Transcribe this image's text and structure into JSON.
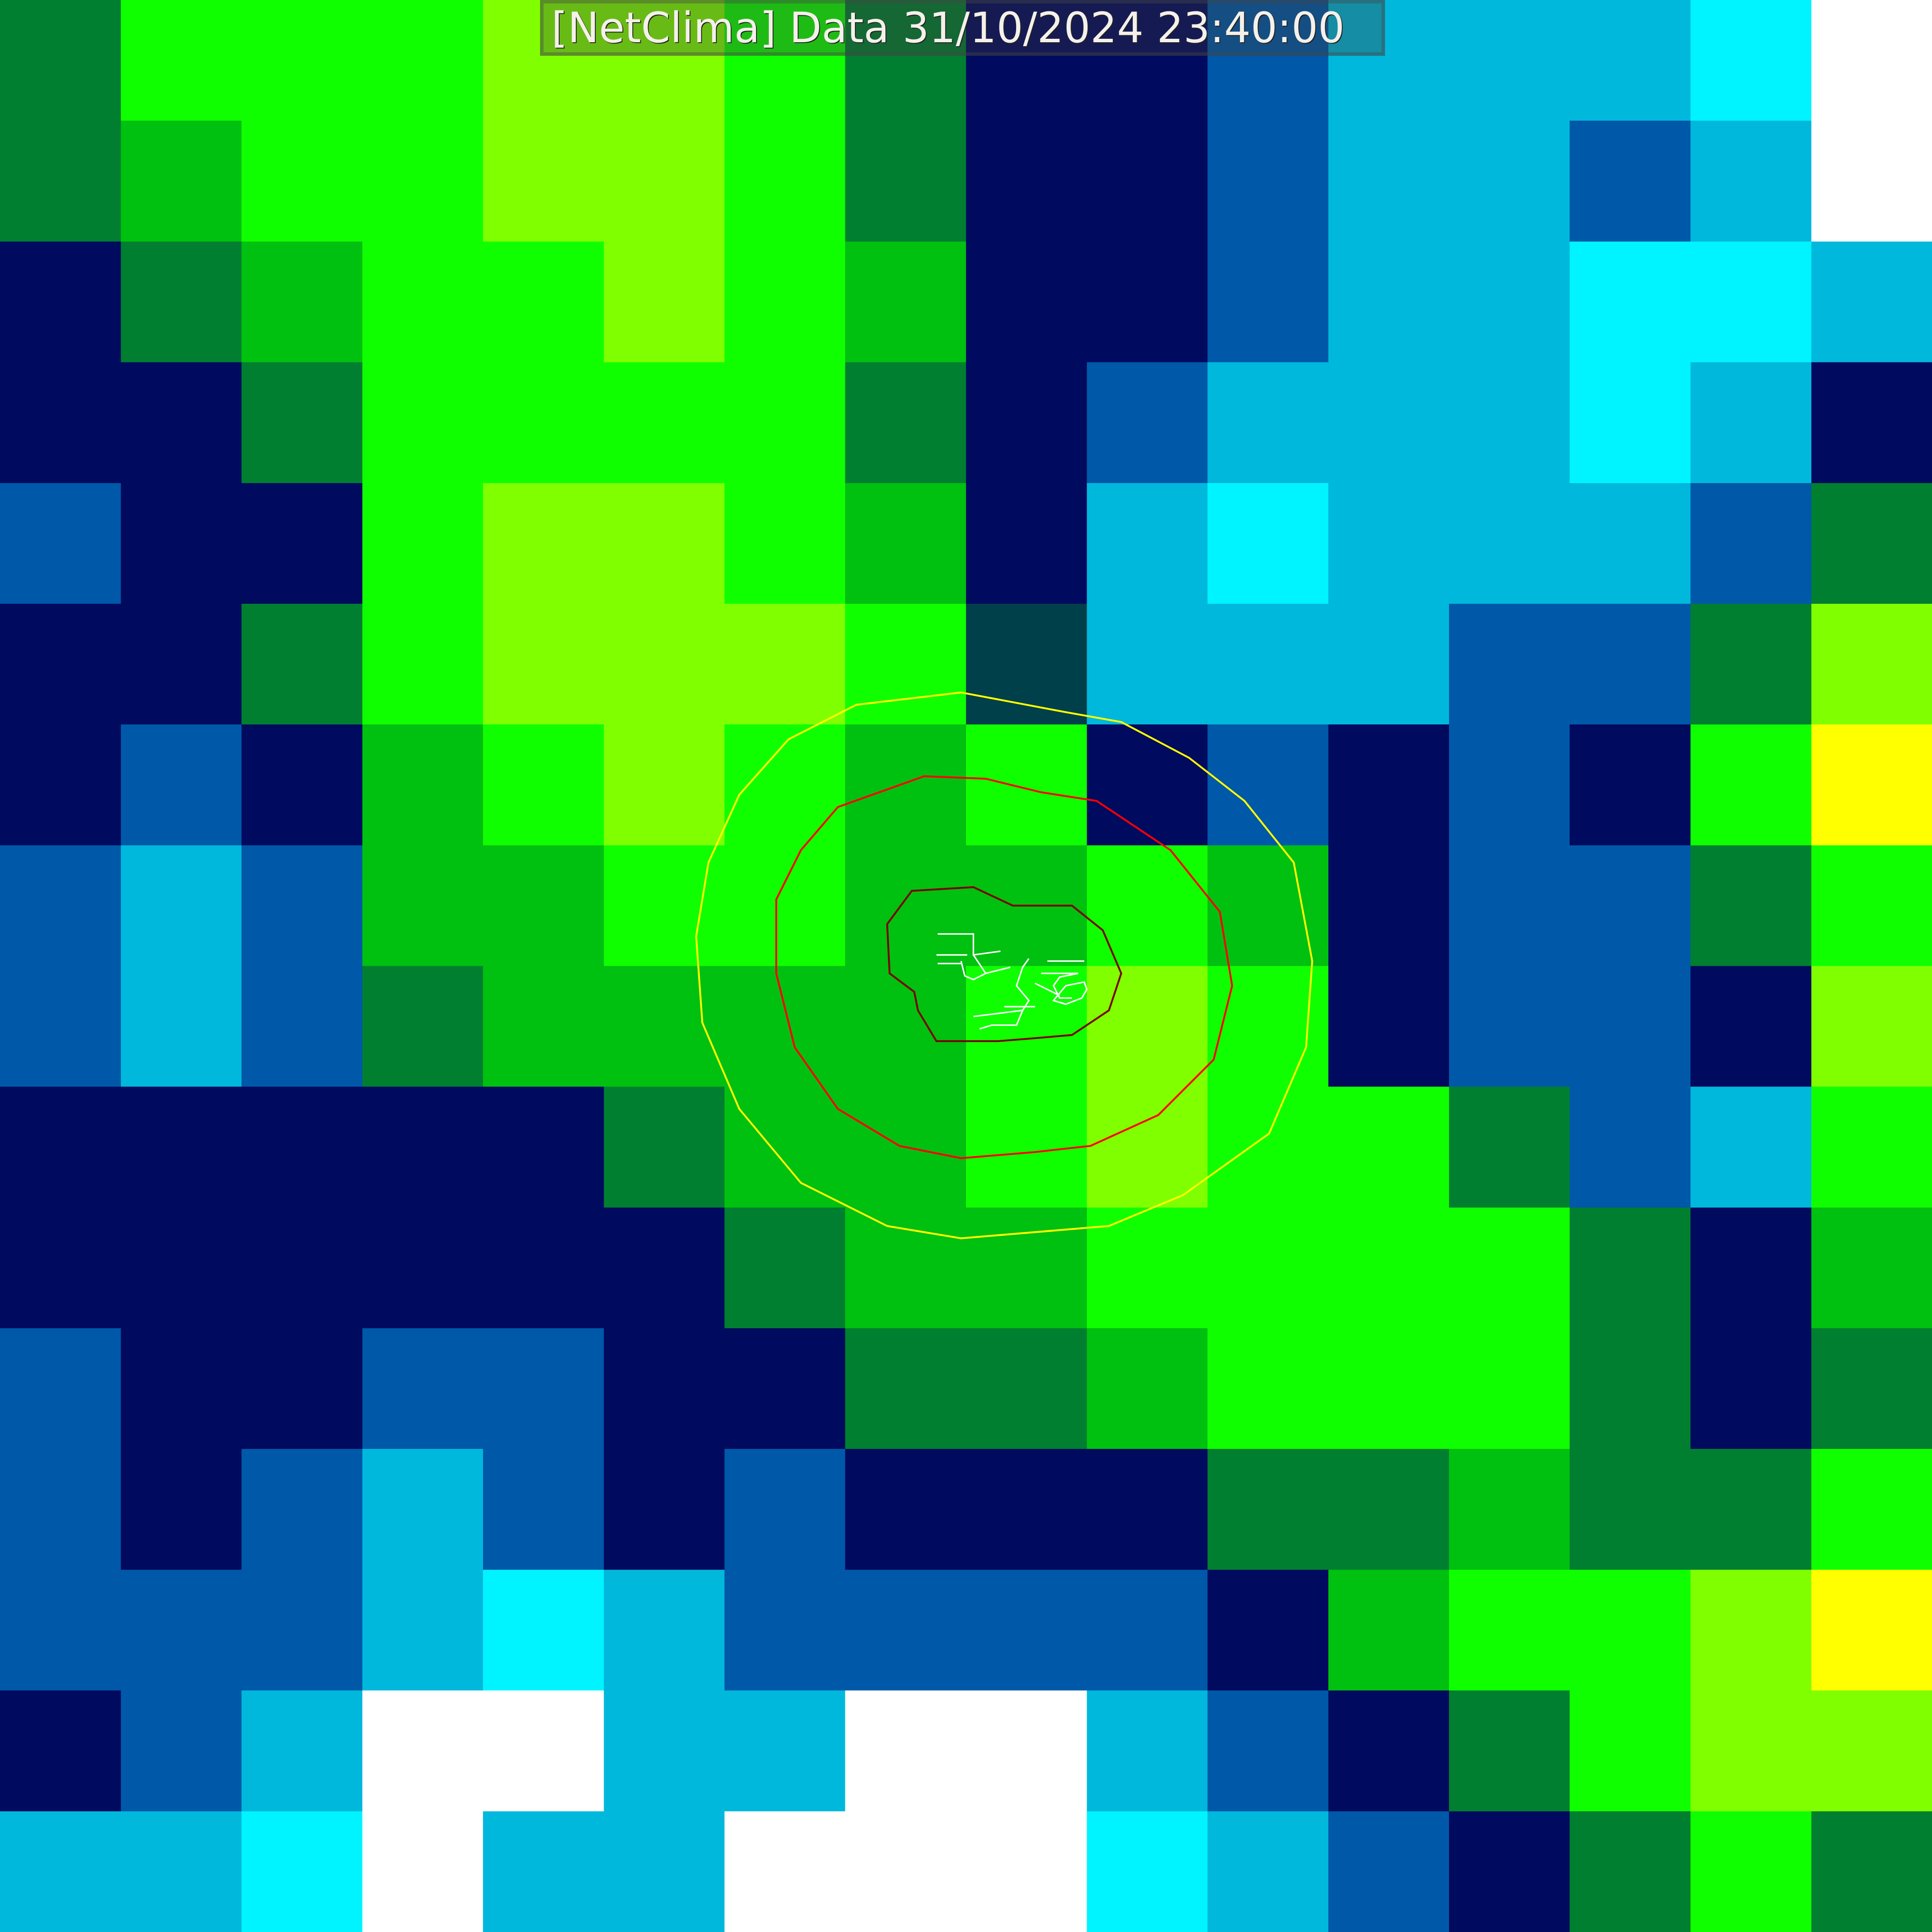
{
  "title": "[NetClima] Data 31/10/2024 23:40:00",
  "palette": {
    "D": "#000a5e",
    "T": "#00404a",
    "B": "#0058a8",
    "C": "#00b8dc",
    "c": "#00f4ff",
    "W": "#ffffff",
    "G": "#007f30",
    "g": "#00c010",
    "L": "#10ff00",
    "Y": "#80ff00",
    "y": "#ffff00"
  },
  "contours": {
    "outer_color": "#ffff00",
    "middle_color": "#ff0000",
    "inner_color": "#7a0000"
  },
  "streets_color": "#ffffff"
}
